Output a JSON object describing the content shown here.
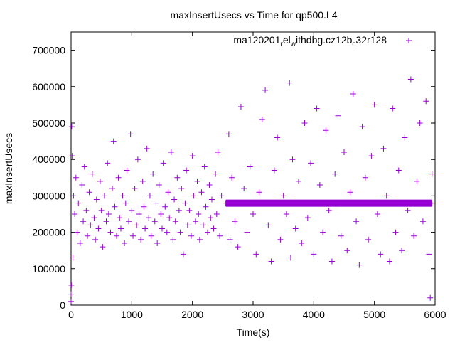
{
  "chart_data": {
    "type": "scatter",
    "title": "maxInsertUsecs vs Time for qp500.L4",
    "xlabel": "Time(s)",
    "ylabel": "maxInsertUsecs",
    "xlim": [
      0,
      6000
    ],
    "ylim": [
      0,
      750000
    ],
    "xticks": [
      0,
      1000,
      2000,
      3000,
      4000,
      5000,
      6000
    ],
    "yticks": [
      0,
      100000,
      200000,
      300000,
      400000,
      500000,
      600000,
      700000
    ],
    "grid": false,
    "legend_position": "top-right",
    "series": [
      {
        "name": "ma120201_rel_withdbg.cz12b_c32r128",
        "name_parts": [
          "ma120201",
          "r",
          "el",
          "w",
          "ithdbg.cz12b",
          "c",
          "32r128"
        ],
        "color": "#9400d3",
        "marker": "+",
        "points": [
          [
            0,
            30000
          ],
          [
            0,
            10000
          ],
          [
            5,
            55000
          ],
          [
            10,
            490000
          ],
          [
            20,
            410000
          ],
          [
            30,
            130000
          ],
          [
            40,
            300000
          ],
          [
            60,
            250000
          ],
          [
            80,
            350000
          ],
          [
            100,
            200000
          ],
          [
            120,
            280000
          ],
          [
            150,
            170000
          ],
          [
            180,
            330000
          ],
          [
            200,
            230000
          ],
          [
            220,
            380000
          ],
          [
            250,
            260000
          ],
          [
            270,
            190000
          ],
          [
            300,
            310000
          ],
          [
            320,
            220000
          ],
          [
            350,
            360000
          ],
          [
            380,
            240000
          ],
          [
            400,
            180000
          ],
          [
            420,
            290000
          ],
          [
            450,
            210000
          ],
          [
            480,
            340000
          ],
          [
            500,
            260000
          ],
          [
            520,
            160000
          ],
          [
            550,
            300000
          ],
          [
            580,
            230000
          ],
          [
            600,
            390000
          ],
          [
            620,
            250000
          ],
          [
            650,
            200000
          ],
          [
            680,
            320000
          ],
          [
            700,
            450000
          ],
          [
            720,
            270000
          ],
          [
            750,
            190000
          ],
          [
            780,
            350000
          ],
          [
            800,
            240000
          ],
          [
            820,
            210000
          ],
          [
            850,
            300000
          ],
          [
            880,
            170000
          ],
          [
            900,
            280000
          ],
          [
            920,
            370000
          ],
          [
            950,
            230000
          ],
          [
            980,
            470000
          ],
          [
            1000,
            260000
          ],
          [
            1020,
            190000
          ],
          [
            1050,
            320000
          ],
          [
            1080,
            220000
          ],
          [
            1100,
            400000
          ],
          [
            1120,
            250000
          ],
          [
            1150,
            180000
          ],
          [
            1180,
            340000
          ],
          [
            1200,
            270000
          ],
          [
            1220,
            210000
          ],
          [
            1250,
            430000
          ],
          [
            1280,
            240000
          ],
          [
            1300,
            300000
          ],
          [
            1320,
            190000
          ],
          [
            1350,
            360000
          ],
          [
            1380,
            230000
          ],
          [
            1400,
            280000
          ],
          [
            1420,
            170000
          ],
          [
            1450,
            330000
          ],
          [
            1480,
            250000
          ],
          [
            1500,
            210000
          ],
          [
            1520,
            390000
          ],
          [
            1550,
            270000
          ],
          [
            1580,
            200000
          ],
          [
            1600,
            310000
          ],
          [
            1620,
            240000
          ],
          [
            1650,
            420000
          ],
          [
            1680,
            180000
          ],
          [
            1700,
            290000
          ],
          [
            1720,
            230000
          ],
          [
            1750,
            350000
          ],
          [
            1780,
            260000
          ],
          [
            1800,
            200000
          ],
          [
            1820,
            320000
          ],
          [
            1850,
            140000
          ],
          [
            1880,
            280000
          ],
          [
            1900,
            370000
          ],
          [
            1920,
            220000
          ],
          [
            1950,
            260000
          ],
          [
            1980,
            190000
          ],
          [
            2000,
            410000
          ],
          [
            2020,
            300000
          ],
          [
            2050,
            230000
          ],
          [
            2080,
            340000
          ],
          [
            2100,
            250000
          ],
          [
            2120,
            180000
          ],
          [
            2150,
            310000
          ],
          [
            2180,
            220000
          ],
          [
            2200,
            380000
          ],
          [
            2220,
            270000
          ],
          [
            2250,
            200000
          ],
          [
            2280,
            330000
          ],
          [
            2300,
            240000
          ],
          [
            2320,
            290000
          ],
          [
            2350,
            210000
          ],
          [
            2380,
            360000
          ],
          [
            2400,
            250000
          ],
          [
            2420,
            420000
          ],
          [
            2450,
            190000
          ],
          [
            2480,
            300000
          ],
          [
            2600,
            470000
          ],
          [
            2620,
            180000
          ],
          [
            2650,
            350000
          ],
          [
            2700,
            230000
          ],
          [
            2750,
            160000
          ],
          [
            2800,
            545000
          ],
          [
            2850,
            320000
          ],
          [
            2900,
            200000
          ],
          [
            2950,
            380000
          ],
          [
            3000,
            250000
          ],
          [
            3050,
            140000
          ],
          [
            3100,
            310000
          ],
          [
            3150,
            510000
          ],
          [
            3200,
            590000
          ],
          [
            3250,
            220000
          ],
          [
            3300,
            120000
          ],
          [
            3350,
            370000
          ],
          [
            3400,
            460000
          ],
          [
            3450,
            180000
          ],
          [
            3500,
            300000
          ],
          [
            3550,
            250000
          ],
          [
            3600,
            610000
          ],
          [
            3620,
            130000
          ],
          [
            3650,
            400000
          ],
          [
            3700,
            210000
          ],
          [
            3750,
            340000
          ],
          [
            3800,
            170000
          ],
          [
            3850,
            500000
          ],
          [
            3900,
            240000
          ],
          [
            3950,
            390000
          ],
          [
            4000,
            140000
          ],
          [
            4050,
            540000
          ],
          [
            4100,
            330000
          ],
          [
            4150,
            200000
          ],
          [
            4200,
            480000
          ],
          [
            4250,
            260000
          ],
          [
            4300,
            120000
          ],
          [
            4350,
            360000
          ],
          [
            4400,
            520000
          ],
          [
            4450,
            190000
          ],
          [
            4500,
            420000
          ],
          [
            4550,
            150000
          ],
          [
            4600,
            310000
          ],
          [
            4650,
            580000
          ],
          [
            4700,
            230000
          ],
          [
            4750,
            110000
          ],
          [
            4800,
            490000
          ],
          [
            4850,
            350000
          ],
          [
            4900,
            180000
          ],
          [
            4950,
            410000
          ],
          [
            5000,
            550000
          ],
          [
            5050,
            250000
          ],
          [
            5100,
            140000
          ],
          [
            5150,
            430000
          ],
          [
            5200,
            300000
          ],
          [
            5250,
            120000
          ],
          [
            5300,
            540000
          ],
          [
            5350,
            200000
          ],
          [
            5400,
            370000
          ],
          [
            5450,
            150000
          ],
          [
            5500,
            460000
          ],
          [
            5550,
            260000
          ],
          [
            5600,
            620000
          ],
          [
            5650,
            190000
          ],
          [
            5700,
            340000
          ],
          [
            5750,
            500000
          ],
          [
            5800,
            230000
          ],
          [
            5850,
            560000
          ],
          [
            5900,
            140000
          ],
          [
            5920,
            20000
          ],
          [
            5950,
            360000
          ]
        ],
        "band": {
          "x_start": 2550,
          "x_end": 5950,
          "x_step": 25,
          "y": 280000
        }
      }
    ]
  }
}
